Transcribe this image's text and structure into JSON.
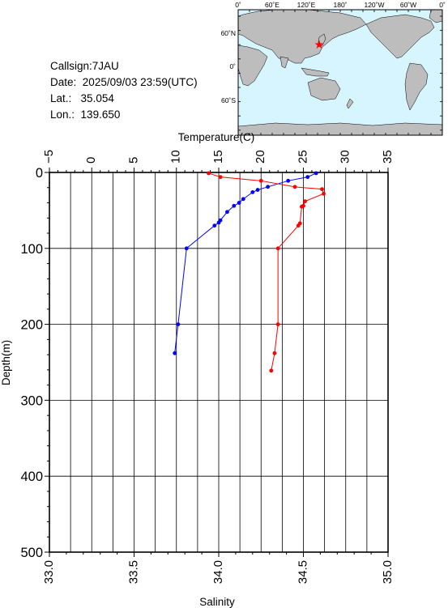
{
  "station": {
    "callsign_label": "Callsign:",
    "callsign": "7JAU",
    "date_label": "Date:",
    "date": "2025/09/03 23:59(UTC)",
    "lat_label": "Lat.:",
    "lat": "35.054",
    "lon_label": "Lon.:",
    "lon": "139.650"
  },
  "map": {
    "top_labels": [
      "0˚",
      "60˚E",
      "120˚E",
      "180˚",
      "120˚W",
      "60˚W",
      "0˚"
    ],
    "left_labels": [
      "60˚N",
      "0˚",
      "60˚S"
    ],
    "ocean_color": "#d6f5ff",
    "land_color": "#bdbdbd",
    "marker_color": "#ff0000",
    "marker": "star-icon"
  },
  "chart_data": {
    "type": "line",
    "ylabel": "Depth(m)",
    "ylim": [
      0,
      500
    ],
    "y_ticks": [
      0,
      100,
      200,
      300,
      400,
      500
    ],
    "y_tick_labels": [
      "0",
      "100",
      "200",
      "300",
      "400",
      "500"
    ],
    "y_reversed": true,
    "grid": true,
    "x_axes": [
      {
        "position": "top",
        "label": "Temperature(C)",
        "lim": [
          -5,
          35
        ],
        "tick_labels": [
          "−5",
          "0",
          "5",
          "10",
          "15",
          "20",
          "25",
          "30",
          "35"
        ]
      },
      {
        "position": "bottom",
        "label": "Salinity",
        "lim": [
          33.0,
          35.0
        ],
        "tick_labels": [
          "33.0",
          "33.5",
          "34.0",
          "34.5",
          "35.0"
        ]
      }
    ],
    "series": [
      {
        "axis": "top",
        "color": "#0000ff",
        "x": [
          26.5,
          25.5,
          23.2,
          20.8,
          19.6,
          19.0,
          17.9,
          17.4,
          16.8,
          16.0,
          15.2,
          15.0,
          14.5,
          11.2,
          10.2,
          9.8
        ],
        "y": [
          1,
          6,
          11,
          19,
          23,
          26,
          35,
          40,
          44,
          52,
          63,
          66,
          70,
          100,
          200,
          238
        ]
      },
      {
        "axis": "bottom",
        "color": "#ff0000",
        "x": [
          33.94,
          34.01,
          34.25,
          34.45,
          34.61,
          34.62,
          34.51,
          34.5,
          34.49,
          34.48,
          34.47,
          34.35,
          34.35,
          34.33,
          34.31
        ],
        "y": [
          1,
          6,
          11,
          19,
          22,
          28,
          38,
          44,
          45,
          67,
          70,
          100,
          200,
          238,
          261
        ]
      }
    ]
  }
}
